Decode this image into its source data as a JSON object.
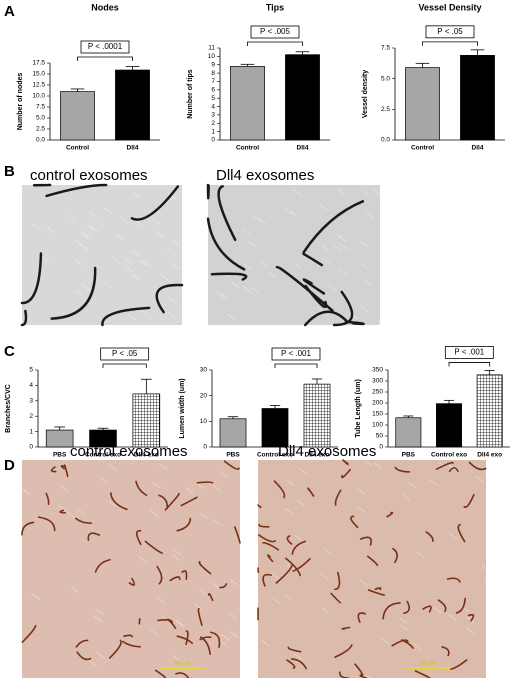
{
  "panel_labels": [
    "A",
    "B",
    "C",
    "D"
  ],
  "images": [
    {
      "caption": "control exosomes"
    },
    {
      "caption": "Dll4 exosomes"
    },
    {
      "caption": "control exosomes",
      "scale_bar": "200 µm"
    },
    {
      "caption": "Dll4 exosomes",
      "scale_bar": "200 µm"
    }
  ],
  "chart_data": [
    {
      "type": "bar",
      "title": "Nodes",
      "ylabel": "Number of nodes",
      "categories": [
        "Control",
        "Dll4"
      ],
      "values": [
        11.0,
        15.9
      ],
      "errors": [
        0.6,
        0.8
      ],
      "colors": [
        "#a6a6a6",
        "#000000"
      ],
      "hatch": [
        false,
        false
      ],
      "ylim": [
        0,
        17.5
      ],
      "yticks": [
        {
          "value": 0,
          "label": "0.0"
        },
        2.5,
        {
          "value": 5,
          "label": "5.0"
        },
        7.5,
        {
          "value": 10,
          "label": "10.0"
        },
        12.5,
        {
          "value": 15,
          "label": "15.0"
        },
        17.5
      ],
      "annotation": "P < .0001"
    },
    {
      "type": "bar",
      "title": "Tips",
      "ylabel": "Number of tips",
      "categories": [
        "Control",
        "Dll4"
      ],
      "values": [
        8.8,
        10.2
      ],
      "errors": [
        0.25,
        0.35
      ],
      "colors": [
        "#a6a6a6",
        "#000000"
      ],
      "hatch": [
        false,
        false
      ],
      "ylim": [
        0,
        11
      ],
      "yticks": [
        0,
        1,
        2,
        3,
        4,
        5,
        6,
        7,
        8,
        9,
        10,
        11
      ],
      "annotation": "P < .005"
    },
    {
      "type": "bar",
      "title": "Vessel Density",
      "ylabel": "Vessel density",
      "categories": [
        "Control",
        "Dll4"
      ],
      "values": [
        5.9,
        6.9
      ],
      "errors": [
        0.35,
        0.45
      ],
      "colors": [
        "#a6a6a6",
        "#000000"
      ],
      "hatch": [
        false,
        false
      ],
      "ylim": [
        0,
        7.5
      ],
      "yticks": [
        {
          "value": 0,
          "label": "0.0"
        },
        2.5,
        {
          "value": 5,
          "label": "5.0"
        },
        7.5
      ],
      "annotation": "P < .05"
    },
    {
      "type": "bar",
      "ylabel": "Branches/CVC",
      "categories": [
        "PBS",
        "Control exo",
        "Dll4 exo"
      ],
      "values": [
        1.1,
        1.1,
        3.45
      ],
      "errors": [
        0.2,
        0.12,
        0.95
      ],
      "colors": [
        "#a6a6a6",
        "#000000",
        "#ffffff"
      ],
      "hatch": [
        false,
        false,
        true
      ],
      "ylim": [
        0,
        5
      ],
      "yticks": [
        0,
        1,
        2,
        3,
        4,
        5
      ],
      "annotation": "P < .05"
    },
    {
      "type": "bar",
      "ylabel": "Lumen width (um)",
      "categories": [
        "PBS",
        "Control exo",
        "Dll4 exo"
      ],
      "values": [
        11,
        15,
        24.5
      ],
      "errors": [
        0.8,
        1.2,
        2
      ],
      "colors": [
        "#a6a6a6",
        "#000000",
        "#ffffff"
      ],
      "hatch": [
        false,
        false,
        true
      ],
      "ylim": [
        0,
        30
      ],
      "yticks": [
        0,
        10,
        20,
        30
      ],
      "annotation": "P < .001"
    },
    {
      "type": "bar",
      "ylabel": "Tube Length (um)",
      "categories": [
        "PBS",
        "Control exo",
        "Dll4 exo"
      ],
      "values": [
        133,
        197,
        328
      ],
      "errors": [
        8,
        15,
        20
      ],
      "colors": [
        "#a6a6a6",
        "#000000",
        "#ffffff"
      ],
      "hatch": [
        false,
        false,
        true
      ],
      "ylim": [
        0,
        350
      ],
      "yticks": [
        0,
        50,
        100,
        150,
        200,
        250,
        300,
        350
      ],
      "annotation": "P < .001"
    }
  ]
}
